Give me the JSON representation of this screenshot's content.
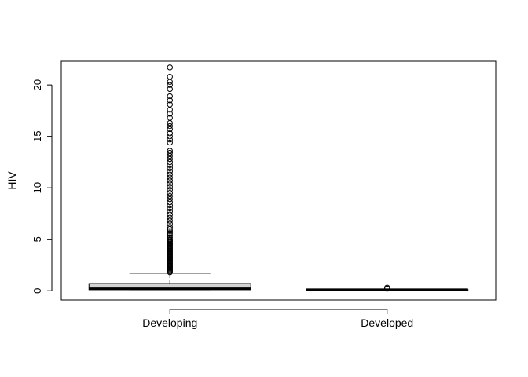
{
  "chart_data": {
    "type": "boxplot",
    "title": "",
    "xlabel": "",
    "ylabel": "HIV",
    "ylim": [
      -0.9,
      22.3
    ],
    "yticks": [
      0,
      5,
      10,
      15,
      20
    ],
    "grid": false,
    "legend": "none",
    "categories": [
      "Developing",
      "Developed"
    ],
    "box_fill": "#d3d3d3",
    "box_stroke": "#000000",
    "boxes": [
      {
        "category": "Developing",
        "whisker_low": 0.1,
        "q1": 0.1,
        "median": 0.2,
        "q3": 0.7,
        "whisker_high": 1.7,
        "outliers": [
          1.8,
          1.9,
          2.0,
          2.1,
          2.2,
          2.3,
          2.4,
          2.5,
          2.6,
          2.7,
          2.8,
          2.9,
          3.0,
          3.1,
          3.2,
          3.3,
          3.4,
          3.5,
          3.6,
          3.7,
          3.8,
          3.9,
          4.0,
          4.1,
          4.2,
          4.3,
          4.4,
          4.5,
          4.6,
          4.7,
          4.8,
          4.9,
          5.0,
          5.2,
          5.4,
          5.6,
          5.8,
          6.0,
          6.2,
          6.5,
          6.8,
          7.1,
          7.4,
          7.7,
          8.0,
          8.3,
          8.6,
          8.9,
          9.2,
          9.5,
          9.8,
          10.1,
          10.4,
          10.7,
          11.0,
          11.3,
          11.6,
          11.9,
          12.2,
          12.5,
          12.8,
          13.1,
          13.4,
          13.6,
          14.4,
          14.7,
          15.0,
          15.3,
          15.7,
          16.0,
          16.3,
          16.8,
          17.2,
          17.6,
          18.1,
          18.5,
          18.9,
          19.6,
          20.0,
          20.3,
          20.8,
          21.7
        ]
      },
      {
        "category": "Developed",
        "whisker_low": 0.1,
        "q1": 0.1,
        "median": 0.1,
        "q3": 0.1,
        "whisker_high": 0.1,
        "outliers": [
          0.2,
          0.3
        ]
      }
    ]
  }
}
